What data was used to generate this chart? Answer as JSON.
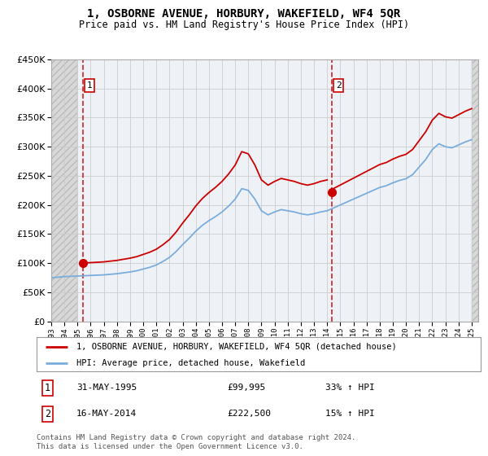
{
  "title": "1, OSBORNE AVENUE, HORBURY, WAKEFIELD, WF4 5QR",
  "subtitle": "Price paid vs. HM Land Registry's House Price Index (HPI)",
  "legend_line1": "1, OSBORNE AVENUE, HORBURY, WAKEFIELD, WF4 5QR (detached house)",
  "legend_line2": "HPI: Average price, detached house, Wakefield",
  "annotation1": {
    "num": "1",
    "date": "31-MAY-1995",
    "price": "£99,995",
    "hpi": "33% ↑ HPI"
  },
  "annotation2": {
    "num": "2",
    "date": "16-MAY-2014",
    "price": "£222,500",
    "hpi": "15% ↑ HPI"
  },
  "footer": "Contains HM Land Registry data © Crown copyright and database right 2024.\nThis data is licensed under the Open Government Licence v3.0.",
  "sale1_x": 1995.42,
  "sale1_y": 99995,
  "sale2_x": 2014.37,
  "sale2_y": 222500,
  "price_line_color": "#cc0000",
  "hpi_line_color": "#7aaddc",
  "sale_marker_color": "#cc0000",
  "ylim": [
    0,
    450000
  ],
  "xlim": [
    1993,
    2025.5
  ],
  "grid_color": "#cccccc",
  "plot_bg": "#eef2f7",
  "hatch_color": "#d0d0d0"
}
